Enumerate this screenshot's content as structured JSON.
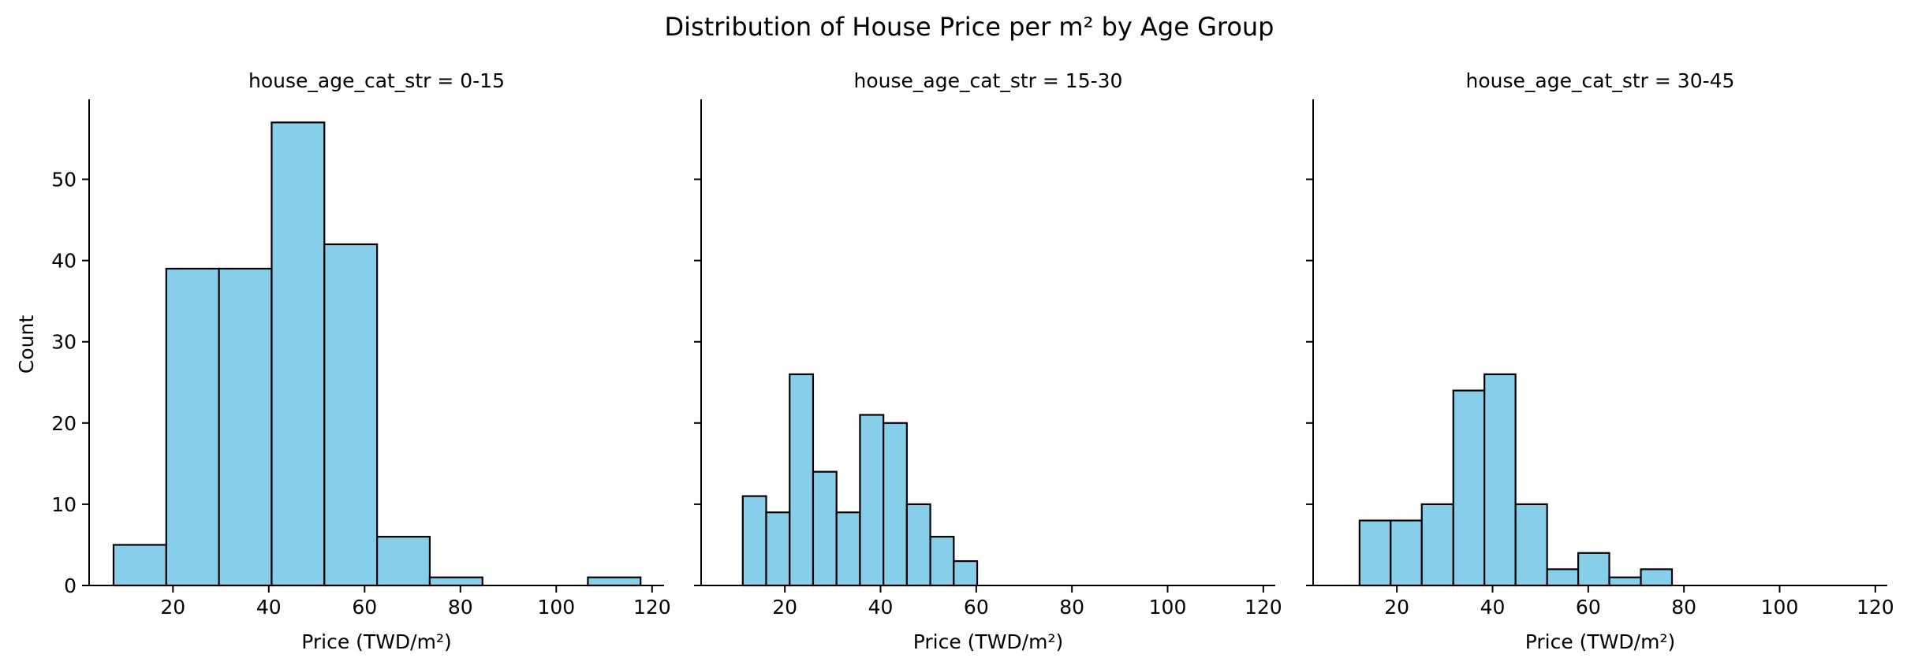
{
  "chart_data": {
    "type": "bar",
    "title": "Distribution of House Price per m² by Age Group",
    "ylabel": "Count",
    "ylim": [
      0,
      59.85
    ],
    "xlim": [
      2.5,
      122.5
    ],
    "yticks": [
      0,
      10,
      20,
      30,
      40,
      50
    ],
    "xticks": [
      20,
      40,
      60,
      80,
      100,
      120
    ],
    "bar_color": "#87ceeb",
    "edge_color": "#000000",
    "grid": false,
    "sharey": true,
    "panels": [
      {
        "title": "house_age_cat_str = 0-15",
        "xlabel": "Price (TWD/m²)",
        "bins": [
          {
            "x0": 7.6,
            "x1": 18.6,
            "count": 5
          },
          {
            "x0": 18.6,
            "x1": 29.6,
            "count": 39
          },
          {
            "x0": 29.6,
            "x1": 40.6,
            "count": 39
          },
          {
            "x0": 40.6,
            "x1": 51.6,
            "count": 57
          },
          {
            "x0": 51.6,
            "x1": 62.6,
            "count": 42
          },
          {
            "x0": 62.6,
            "x1": 73.6,
            "count": 6
          },
          {
            "x0": 73.6,
            "x1": 84.6,
            "count": 1
          },
          {
            "x0": 84.6,
            "x1": 95.6,
            "count": 0
          },
          {
            "x0": 95.6,
            "x1": 106.6,
            "count": 0
          },
          {
            "x0": 106.6,
            "x1": 117.6,
            "count": 1
          }
        ]
      },
      {
        "title": "house_age_cat_str = 15-30",
        "xlabel": "Price (TWD/m²)",
        "bins": [
          {
            "x0": 11.2,
            "x1": 16.1,
            "count": 11
          },
          {
            "x0": 16.1,
            "x1": 21.0,
            "count": 9
          },
          {
            "x0": 21.0,
            "x1": 25.9,
            "count": 26
          },
          {
            "x0": 25.9,
            "x1": 30.8,
            "count": 14
          },
          {
            "x0": 30.8,
            "x1": 35.7,
            "count": 9
          },
          {
            "x0": 35.7,
            "x1": 40.6,
            "count": 21
          },
          {
            "x0": 40.6,
            "x1": 45.5,
            "count": 20
          },
          {
            "x0": 45.5,
            "x1": 50.4,
            "count": 10
          },
          {
            "x0": 50.4,
            "x1": 55.3,
            "count": 6
          },
          {
            "x0": 55.3,
            "x1": 60.2,
            "count": 3
          }
        ]
      },
      {
        "title": "house_age_cat_str = 30-45",
        "xlabel": "Price (TWD/m²)",
        "bins": [
          {
            "x0": 12.2,
            "x1": 18.7,
            "count": 8
          },
          {
            "x0": 18.7,
            "x1": 25.2,
            "count": 8
          },
          {
            "x0": 25.2,
            "x1": 31.8,
            "count": 10
          },
          {
            "x0": 31.8,
            "x1": 38.3,
            "count": 24
          },
          {
            "x0": 38.3,
            "x1": 44.8,
            "count": 26
          },
          {
            "x0": 44.8,
            "x1": 51.4,
            "count": 10
          },
          {
            "x0": 51.4,
            "x1": 57.9,
            "count": 2
          },
          {
            "x0": 57.9,
            "x1": 64.4,
            "count": 4
          },
          {
            "x0": 64.4,
            "x1": 71.0,
            "count": 1
          },
          {
            "x0": 71.0,
            "x1": 77.5,
            "count": 2
          }
        ]
      }
    ]
  }
}
